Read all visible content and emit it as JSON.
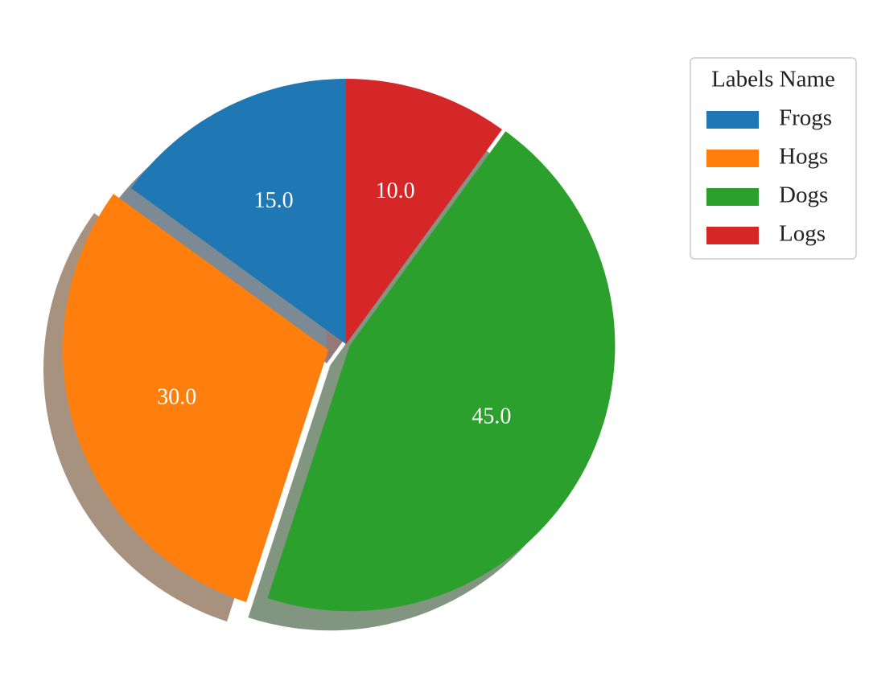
{
  "chart_data": {
    "type": "pie",
    "categories": [
      "Frogs",
      "Hogs",
      "Dogs",
      "Logs"
    ],
    "values": [
      15,
      30,
      45,
      10
    ],
    "value_labels": [
      "15.0",
      "30.0",
      "45.0",
      "10.0"
    ],
    "colors": [
      "#1f77b4",
      "#ff7f0e",
      "#2ca02c",
      "#d62728"
    ],
    "legend_title": "Labels Name",
    "legend": "upper right"
  }
}
